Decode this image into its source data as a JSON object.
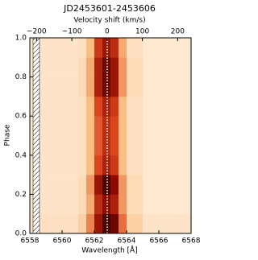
{
  "chart_data": {
    "type": "heatmap",
    "title": "JD2453601-2453606",
    "xlabel": "Wavelength [Å]",
    "x2label": "Velocity shift (km/s)",
    "ylabel": "Phase",
    "xlim": [
      6558,
      6568
    ],
    "xticks": [
      6558,
      6560,
      6562,
      6564,
      6566,
      6568
    ],
    "x2lim": [
      -219,
      238
    ],
    "x2ticks": [
      {
        "value": -200,
        "label": "−200"
      },
      {
        "value": -100,
        "label": "−100"
      },
      0,
      100,
      200
    ],
    "ylim": [
      0,
      1
    ],
    "yticks": [
      {
        "value": 0,
        "label": "0.0"
      },
      {
        "value": 0.2,
        "label": "0.2"
      },
      {
        "value": 0.4,
        "label": "0.4"
      },
      {
        "value": 0.6,
        "label": "0.6"
      },
      {
        "value": 0.8,
        "label": "0.8"
      },
      {
        "value": 1,
        "label": "1.0"
      }
    ],
    "x_edges": [
      6558,
      6561,
      6561.5,
      6562,
      6562.5,
      6563,
      6563.5,
      6564,
      6565,
      6568
    ],
    "y_edges": [
      0,
      0.1,
      0.2,
      0.3,
      0.4,
      0.5,
      0.6,
      0.7,
      0.8,
      0.9,
      1.0
    ],
    "z": [
      [
        0.12,
        0.2,
        0.45,
        0.8,
        0.95,
        0.9,
        0.5,
        0.2,
        0.1
      ],
      [
        0.1,
        0.15,
        0.35,
        0.7,
        0.85,
        0.75,
        0.4,
        0.15,
        0.08
      ],
      [
        0.1,
        0.15,
        0.4,
        0.8,
        0.95,
        0.85,
        0.4,
        0.15,
        0.08
      ],
      [
        0.1,
        0.12,
        0.3,
        0.6,
        0.75,
        0.65,
        0.3,
        0.12,
        0.08
      ],
      [
        0.1,
        0.12,
        0.3,
        0.55,
        0.7,
        0.6,
        0.3,
        0.12,
        0.08
      ],
      [
        0.1,
        0.12,
        0.3,
        0.55,
        0.7,
        0.6,
        0.3,
        0.12,
        0.08
      ],
      [
        0.1,
        0.12,
        0.3,
        0.6,
        0.75,
        0.65,
        0.3,
        0.12,
        0.08
      ],
      [
        0.1,
        0.15,
        0.35,
        0.75,
        0.9,
        0.8,
        0.4,
        0.15,
        0.08
      ],
      [
        0.1,
        0.15,
        0.35,
        0.75,
        0.9,
        0.8,
        0.4,
        0.15,
        0.08
      ],
      [
        0.1,
        0.12,
        0.3,
        0.65,
        0.8,
        0.7,
        0.35,
        0.12,
        0.08
      ]
    ],
    "reference_line": 6562.8,
    "masked_range": [
      6558.2,
      6558.6
    ]
  }
}
